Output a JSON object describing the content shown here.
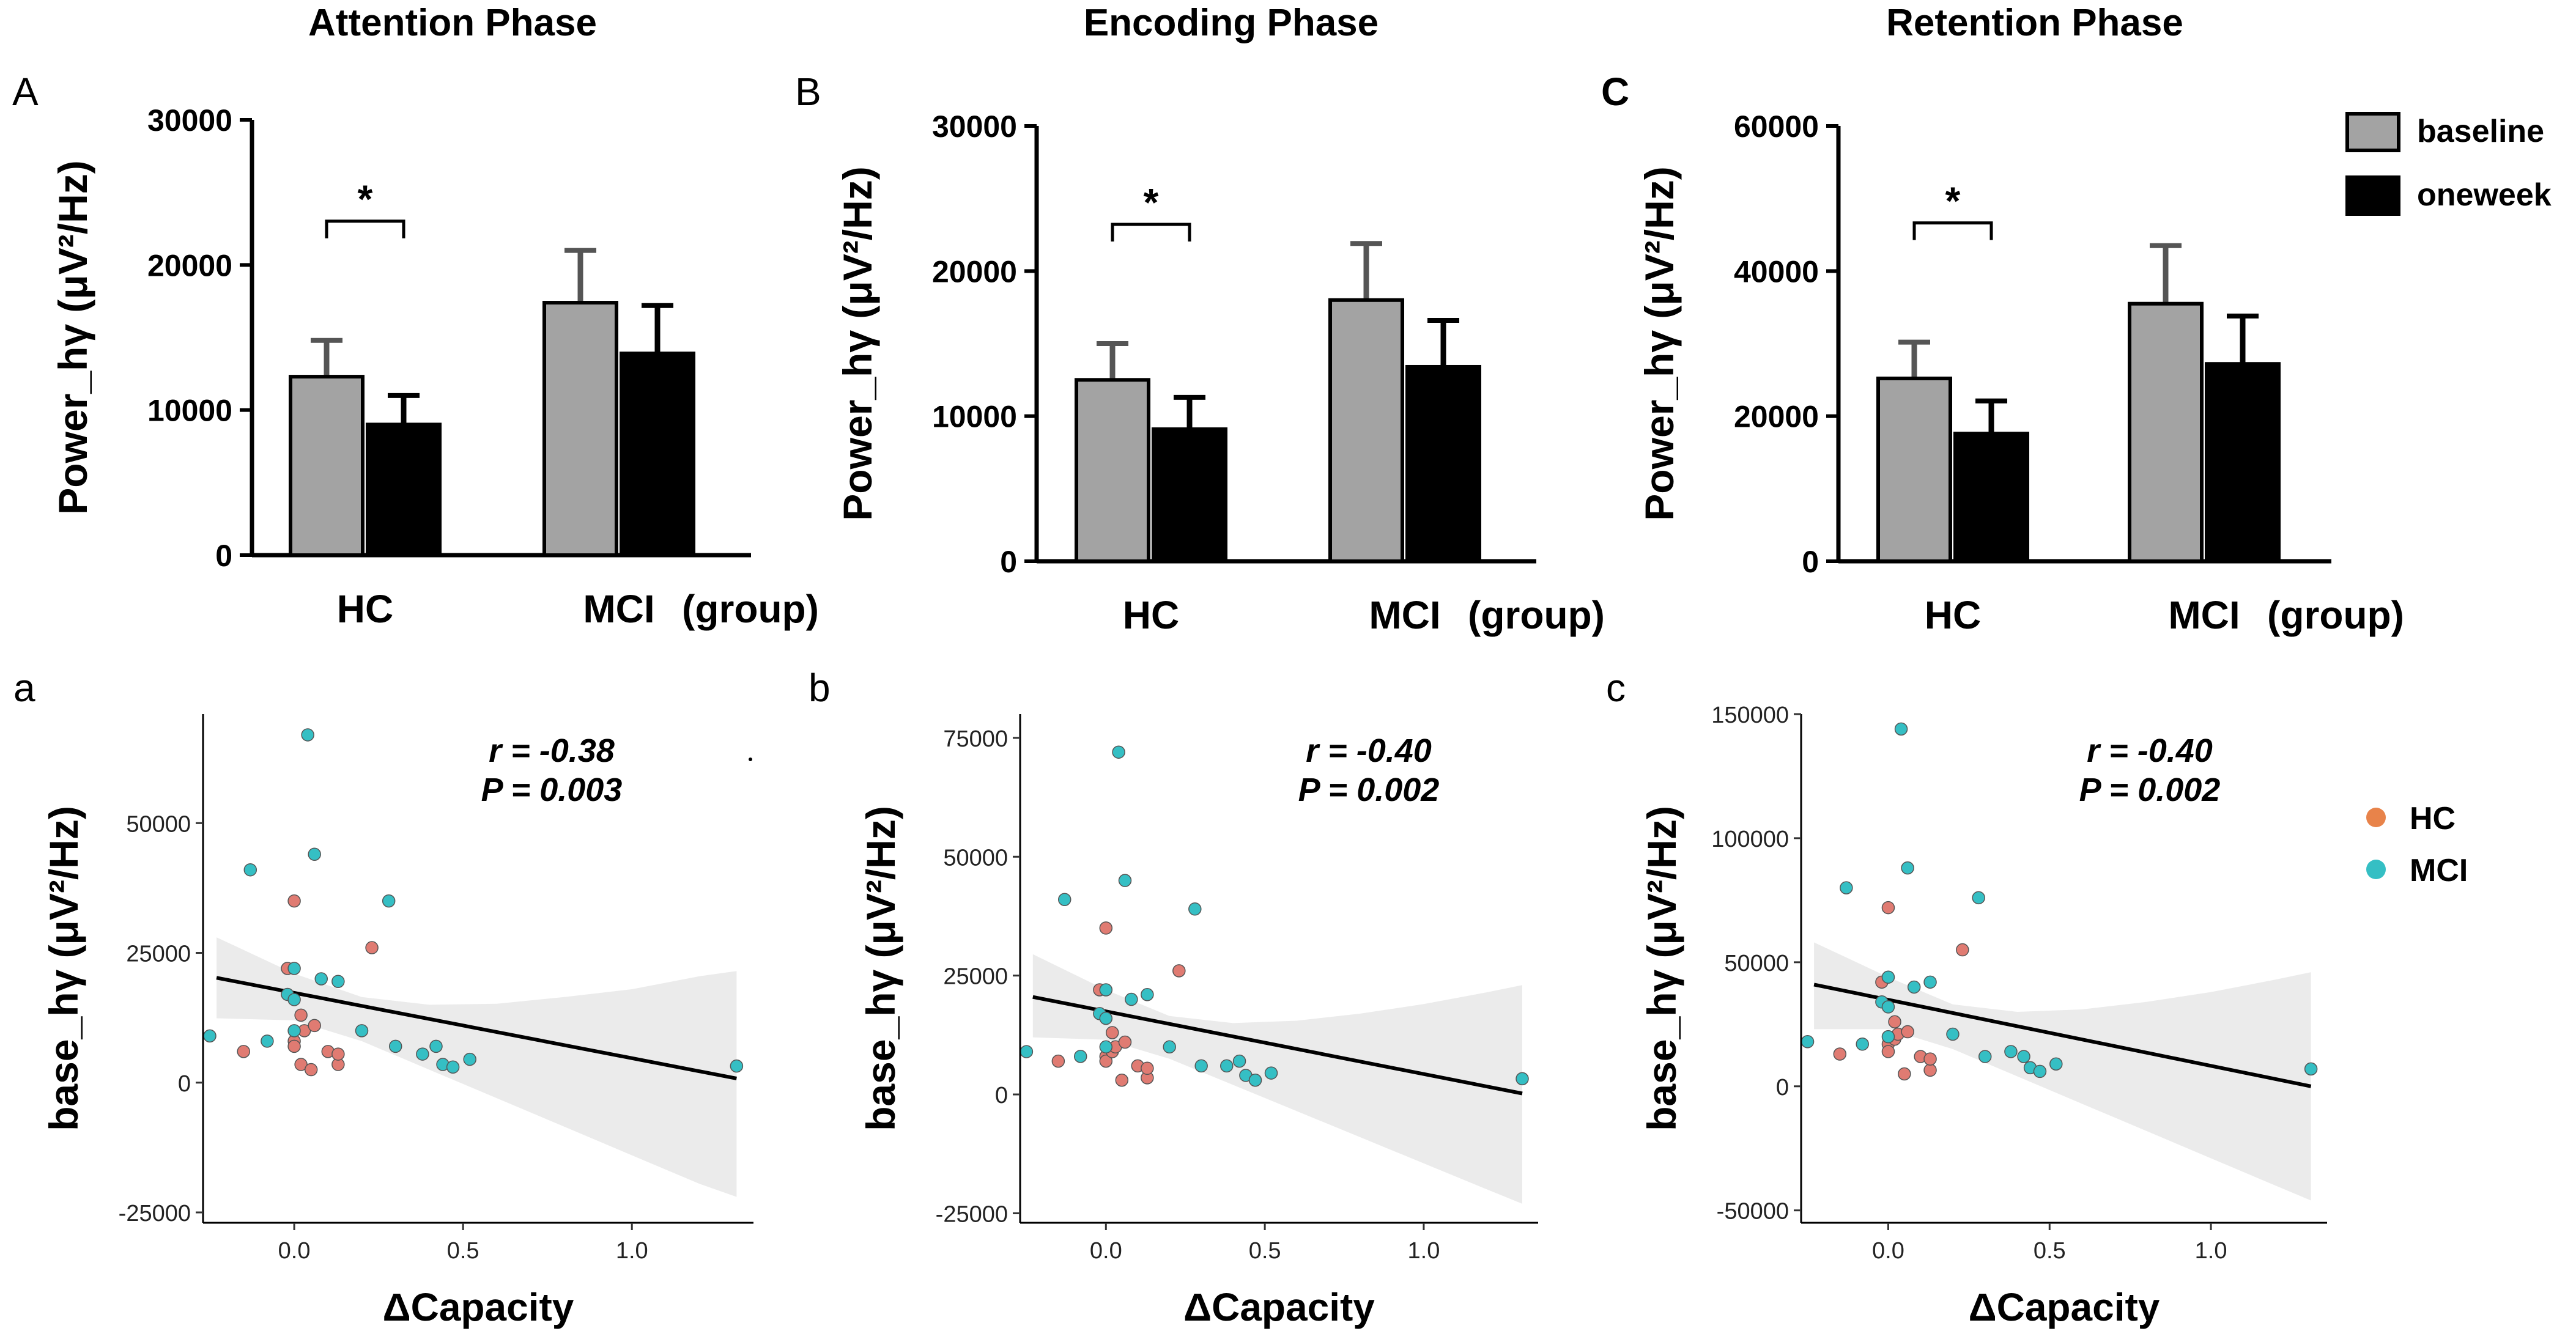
{
  "colors": {
    "baseline": "#a3a3a3",
    "oneweek": "#000000",
    "hc": "#e07b72",
    "mci": "#35bfc4",
    "ribbon": "#ebebeb",
    "bar_outline": "#000000",
    "error_bar": "#555555"
  },
  "legend_bars": {
    "items": [
      {
        "name": "baseline",
        "label": "baseline",
        "color": "#a3a3a3"
      },
      {
        "name": "oneweek",
        "label": "oneweek",
        "color": "#000000"
      }
    ]
  },
  "legend_scatter": {
    "items": [
      {
        "name": "hc",
        "label": "HC",
        "color": "#e8834a"
      },
      {
        "name": "mci",
        "label": "MCI",
        "color": "#35bfc4"
      }
    ]
  },
  "chart_data": [
    {
      "type": "bar",
      "panel": "A",
      "title": "Attention Phase",
      "ylabel": "Power_hγ (μV²/Hz)",
      "ylim": [
        0,
        30000
      ],
      "yticks": [
        0,
        10000,
        20000,
        30000
      ],
      "categories": [
        "HC",
        "MCI"
      ],
      "xlabel_suffix": "(group)",
      "series": [
        {
          "name": "baseline",
          "values": [
            12300,
            17400
          ],
          "errors": [
            2500,
            3600
          ]
        },
        {
          "name": "oneweek",
          "values": [
            9000,
            13900
          ],
          "errors": [
            2000,
            3300
          ]
        }
      ],
      "significance": {
        "group": "HC",
        "label": "*"
      }
    },
    {
      "type": "bar",
      "panel": "B",
      "title": "Encoding Phase",
      "ylabel": "Power_hγ (μV²/Hz)",
      "ylim": [
        0,
        30000
      ],
      "yticks": [
        0,
        10000,
        20000,
        30000
      ],
      "categories": [
        "HC",
        "MCI"
      ],
      "xlabel_suffix": "(group)",
      "series": [
        {
          "name": "baseline",
          "values": [
            12500,
            18000
          ],
          "errors": [
            2500,
            3900
          ]
        },
        {
          "name": "oneweek",
          "values": [
            9100,
            13400
          ],
          "errors": [
            2200,
            3200
          ]
        }
      ],
      "significance": {
        "group": "HC",
        "label": "*"
      }
    },
    {
      "type": "bar",
      "panel": "C",
      "title": "Retention Phase",
      "ylabel": "Power_hγ (μV²/Hz)",
      "ylim": [
        0,
        60000
      ],
      "yticks": [
        0,
        20000,
        40000,
        60000
      ],
      "categories": [
        "HC",
        "MCI"
      ],
      "xlabel_suffix": "(group)",
      "series": [
        {
          "name": "baseline",
          "values": [
            25200,
            35500
          ],
          "errors": [
            5000,
            8000
          ]
        },
        {
          "name": "oneweek",
          "values": [
            17600,
            27200
          ],
          "errors": [
            4500,
            6600
          ]
        }
      ],
      "significance": {
        "group": "HC",
        "label": "*"
      }
    },
    {
      "type": "scatter",
      "panel": "a",
      "xlabel": "ΔCapacity",
      "ylabel": "base_hγ (μV²/Hz)",
      "xlim": [
        -0.27,
        1.36
      ],
      "ylim": [
        -27000,
        71000
      ],
      "xticks": [
        0.0,
        0.5,
        1.0
      ],
      "yticks": [
        -25000,
        0,
        25000,
        50000
      ],
      "ytick_labels": [
        "-25000",
        "0",
        "25000",
        "50000"
      ],
      "stats": {
        "r": "r = -0.38",
        "p": "P = 0.003"
      },
      "fit": {
        "x": [
          -0.23,
          1.31
        ],
        "y": [
          20200,
          800
        ]
      },
      "ribbon": {
        "x": [
          -0.23,
          0.0,
          0.2,
          0.4,
          0.6,
          0.8,
          1.0,
          1.2,
          1.31
        ],
        "upper": [
          28000,
          21000,
          16500,
          15000,
          15200,
          16500,
          18000,
          20500,
          21500
        ],
        "lower": [
          12400,
          12000,
          8000,
          2500,
          -3000,
          -8500,
          -14000,
          -19500,
          -22000
        ]
      },
      "series": [
        {
          "name": "HC",
          "points": [
            [
              -0.15,
              6000
            ],
            [
              -0.02,
              22000
            ],
            [
              0.0,
              35000
            ],
            [
              0.0,
              8000
            ],
            [
              0.0,
              7000
            ],
            [
              0.02,
              3500
            ],
            [
              0.02,
              13000
            ],
            [
              0.03,
              10000
            ],
            [
              0.05,
              2500
            ],
            [
              0.06,
              11000
            ],
            [
              0.1,
              6000
            ],
            [
              0.13,
              3500
            ],
            [
              0.13,
              5500
            ],
            [
              0.23,
              26000
            ]
          ]
        },
        {
          "name": "MCI",
          "points": [
            [
              -0.25,
              9000
            ],
            [
              -0.13,
              41000
            ],
            [
              -0.08,
              8000
            ],
            [
              -0.02,
              17000
            ],
            [
              0.0,
              22000
            ],
            [
              0.0,
              16000
            ],
            [
              0.0,
              10000
            ],
            [
              0.04,
              67000
            ],
            [
              0.06,
              44000
            ],
            [
              0.08,
              20000
            ],
            [
              0.13,
              19500
            ],
            [
              0.2,
              10000
            ],
            [
              0.28,
              35000
            ],
            [
              0.3,
              7000
            ],
            [
              0.38,
              5500
            ],
            [
              0.42,
              7000
            ],
            [
              0.44,
              3500
            ],
            [
              0.47,
              3000
            ],
            [
              0.52,
              4500
            ],
            [
              1.31,
              3200
            ]
          ]
        }
      ]
    },
    {
      "type": "scatter",
      "panel": "b",
      "xlabel": "ΔCapacity",
      "ylabel": "base_hγ (μV²/Hz)",
      "xlim": [
        -0.27,
        1.36
      ],
      "ylim": [
        -27000,
        80000
      ],
      "xticks": [
        0.0,
        0.5,
        1.0
      ],
      "yticks": [
        -25000,
        0,
        25000,
        50000,
        75000
      ],
      "ytick_labels": [
        "-25000",
        "0",
        "25000",
        "50000",
        "75000"
      ],
      "stats": {
        "r": "r = -0.40",
        "p": "P = 0.002"
      },
      "fit": {
        "x": [
          -0.23,
          1.31
        ],
        "y": [
          20500,
          200
        ]
      },
      "ribbon": {
        "x": [
          -0.23,
          0.0,
          0.2,
          0.4,
          0.6,
          0.8,
          1.0,
          1.2,
          1.31
        ],
        "upper": [
          29500,
          22000,
          16500,
          15000,
          15500,
          17000,
          19000,
          21500,
          23000
        ],
        "lower": [
          12000,
          11500,
          7500,
          2000,
          -3500,
          -9000,
          -14500,
          -20000,
          -23000
        ]
      },
      "series": [
        {
          "name": "HC",
          "points": [
            [
              -0.15,
              7000
            ],
            [
              -0.02,
              22000
            ],
            [
              0.0,
              35000
            ],
            [
              0.0,
              8000
            ],
            [
              0.0,
              7000
            ],
            [
              0.02,
              9000
            ],
            [
              0.02,
              13000
            ],
            [
              0.03,
              10000
            ],
            [
              0.05,
              3000
            ],
            [
              0.06,
              11000
            ],
            [
              0.1,
              6000
            ],
            [
              0.13,
              3500
            ],
            [
              0.13,
              5500
            ],
            [
              0.23,
              26000
            ]
          ]
        },
        {
          "name": "MCI",
          "points": [
            [
              -0.25,
              9000
            ],
            [
              -0.13,
              41000
            ],
            [
              -0.08,
              8000
            ],
            [
              -0.02,
              17000
            ],
            [
              0.0,
              22000
            ],
            [
              0.0,
              16000
            ],
            [
              0.0,
              10000
            ],
            [
              0.04,
              72000
            ],
            [
              0.06,
              45000
            ],
            [
              0.08,
              20000
            ],
            [
              0.13,
              21000
            ],
            [
              0.2,
              10000
            ],
            [
              0.28,
              39000
            ],
            [
              0.3,
              6000
            ],
            [
              0.38,
              6000
            ],
            [
              0.42,
              7000
            ],
            [
              0.44,
              4000
            ],
            [
              0.47,
              3000
            ],
            [
              0.52,
              4500
            ],
            [
              1.31,
              3300
            ]
          ]
        }
      ]
    },
    {
      "type": "scatter",
      "panel": "c",
      "xlabel": "ΔCapacity",
      "ylabel": "base_hγ (μV²/Hz)",
      "xlim": [
        -0.27,
        1.36
      ],
      "ylim": [
        -55000,
        150000
      ],
      "xticks": [
        0.0,
        0.5,
        1.0
      ],
      "yticks": [
        -50000,
        0,
        50000,
        100000,
        150000
      ],
      "ytick_labels": [
        "-50000",
        "0",
        "50000",
        "100000",
        "150000"
      ],
      "stats": {
        "r": "r = -0.40",
        "p": "P = 0.002"
      },
      "fit": {
        "x": [
          -0.23,
          1.31
        ],
        "y": [
          41000,
          0
        ]
      },
      "ribbon": {
        "x": [
          -0.23,
          0.0,
          0.2,
          0.4,
          0.6,
          0.8,
          1.0,
          1.2,
          1.31
        ],
        "upper": [
          58000,
          44000,
          33000,
          30000,
          31000,
          34000,
          38000,
          43000,
          46000
        ],
        "lower": [
          23000,
          23000,
          15000,
          4000,
          -7000,
          -18000,
          -29000,
          -40000,
          -46000
        ]
      },
      "series": [
        {
          "name": "HC",
          "points": [
            [
              -0.15,
              13000
            ],
            [
              -0.02,
              42000
            ],
            [
              0.0,
              72000
            ],
            [
              0.0,
              17000
            ],
            [
              0.0,
              14000
            ],
            [
              0.02,
              19000
            ],
            [
              0.02,
              26000
            ],
            [
              0.03,
              21000
            ],
            [
              0.05,
              5000
            ],
            [
              0.06,
              22000
            ],
            [
              0.1,
              12000
            ],
            [
              0.13,
              6500
            ],
            [
              0.13,
              11000
            ],
            [
              0.23,
              55000
            ]
          ]
        },
        {
          "name": "MCI",
          "points": [
            [
              -0.25,
              18000
            ],
            [
              -0.13,
              80000
            ],
            [
              -0.08,
              17000
            ],
            [
              -0.02,
              34000
            ],
            [
              0.0,
              44000
            ],
            [
              0.0,
              32000
            ],
            [
              0.0,
              20000
            ],
            [
              0.04,
              144000
            ],
            [
              0.06,
              88000
            ],
            [
              0.08,
              40000
            ],
            [
              0.13,
              42000
            ],
            [
              0.2,
              21000
            ],
            [
              0.28,
              76000
            ],
            [
              0.3,
              12000
            ],
            [
              0.38,
              14000
            ],
            [
              0.42,
              12000
            ],
            [
              0.44,
              7500
            ],
            [
              0.47,
              6000
            ],
            [
              0.52,
              9000
            ],
            [
              1.31,
              7000
            ]
          ]
        }
      ]
    }
  ]
}
